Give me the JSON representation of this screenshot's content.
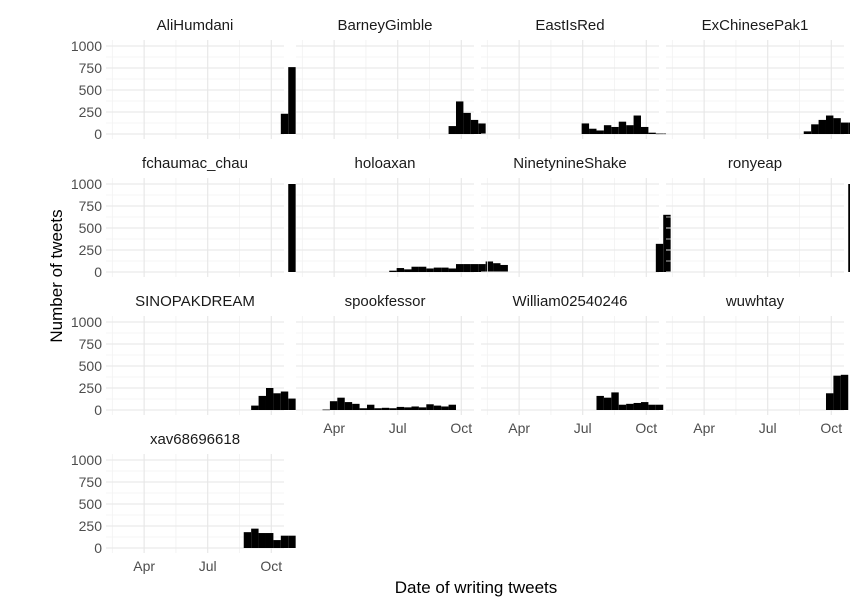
{
  "chart_data": {
    "type": "bar",
    "layout": "facet-wrap-4-columns",
    "xlabel": "Date of writing tweets",
    "ylabel": "Number of tweets",
    "x_ticks": [
      "Apr",
      "Jul",
      "Oct"
    ],
    "x_tick_months": [
      4,
      7,
      10
    ],
    "x_range_months": [
      2.2,
      10.6
    ],
    "bin_start_month": 2.4,
    "bin_width_months": 0.35,
    "y_ticks": [
      0,
      250,
      500,
      750,
      1000
    ],
    "ylim": [
      0,
      1000
    ],
    "bar_color": "#000000",
    "grid": true,
    "panels": [
      {
        "name": "AliHumdani",
        "values": [
          0,
          0,
          0,
          0,
          0,
          0,
          0,
          0,
          0,
          0,
          0,
          0,
          0,
          0,
          0,
          0,
          0,
          0,
          0,
          0,
          0,
          0,
          0,
          230,
          760
        ]
      },
      {
        "name": "BarneyGimble",
        "values": [
          0,
          0,
          0,
          0,
          0,
          0,
          0,
          0,
          0,
          0,
          0,
          0,
          0,
          0,
          0,
          0,
          0,
          0,
          0,
          0,
          90,
          370,
          240,
          160,
          120
        ]
      },
      {
        "name": "EastIsRed",
        "values": [
          0,
          0,
          0,
          0,
          0,
          0,
          0,
          0,
          0,
          0,
          0,
          0,
          0,
          120,
          60,
          40,
          100,
          80,
          140,
          100,
          210,
          80,
          15,
          5,
          5
        ]
      },
      {
        "name": "ExChinesePak1",
        "values": [
          0,
          0,
          0,
          0,
          0,
          0,
          0,
          0,
          0,
          0,
          0,
          0,
          0,
          0,
          0,
          0,
          0,
          0,
          30,
          110,
          160,
          210,
          180,
          130,
          130
        ]
      },
      {
        "name": "fchaumac_chau",
        "values": [
          0,
          0,
          0,
          0,
          0,
          0,
          0,
          0,
          0,
          0,
          0,
          0,
          0,
          0,
          0,
          0,
          0,
          0,
          0,
          0,
          0,
          0,
          0,
          0,
          1000
        ]
      },
      {
        "name": "holoaxan",
        "values": [
          0,
          0,
          0,
          0,
          0,
          0,
          0,
          0,
          0,
          0,
          0,
          0,
          15,
          45,
          30,
          60,
          60,
          40,
          50,
          50,
          40,
          90,
          90,
          90,
          90,
          120,
          100,
          80
        ]
      },
      {
        "name": "NinetynineShake",
        "values": [
          0,
          0,
          0,
          0,
          0,
          0,
          0,
          0,
          0,
          0,
          0,
          0,
          0,
          0,
          0,
          0,
          0,
          0,
          0,
          0,
          0,
          0,
          0,
          320,
          650
        ]
      },
      {
        "name": "ronyeap",
        "values": [
          0,
          0,
          0,
          0,
          0,
          0,
          0,
          0,
          0,
          0,
          0,
          0,
          0,
          0,
          0,
          0,
          0,
          0,
          0,
          0,
          0,
          0,
          0,
          0,
          1000
        ]
      },
      {
        "name": "SINOPAKDREAM",
        "values": [
          0,
          0,
          0,
          0,
          0,
          0,
          0,
          0,
          0,
          0,
          0,
          0,
          0,
          0,
          0,
          0,
          0,
          0,
          0,
          50,
          160,
          250,
          190,
          210,
          130
        ]
      },
      {
        "name": "spookfessor",
        "values": [
          0,
          0,
          0,
          5,
          100,
          140,
          90,
          70,
          20,
          60,
          20,
          25,
          20,
          35,
          30,
          40,
          30,
          65,
          50,
          40,
          60
        ]
      },
      {
        "name": "William02540246",
        "values": [
          0,
          0,
          0,
          0,
          0,
          0,
          0,
          0,
          0,
          0,
          0,
          0,
          0,
          0,
          0,
          160,
          140,
          200,
          60,
          70,
          80,
          90,
          60,
          60
        ]
      },
      {
        "name": "wuwhtay",
        "values": [
          0,
          0,
          0,
          0,
          0,
          0,
          0,
          0,
          0,
          0,
          0,
          0,
          0,
          0,
          0,
          0,
          0,
          0,
          0,
          0,
          0,
          190,
          390,
          400
        ]
      },
      {
        "name": "xav68696618",
        "values": [
          0,
          0,
          0,
          0,
          0,
          0,
          0,
          0,
          0,
          0,
          0,
          0,
          0,
          0,
          0,
          0,
          0,
          0,
          180,
          220,
          170,
          170,
          90,
          140,
          140
        ]
      }
    ]
  }
}
